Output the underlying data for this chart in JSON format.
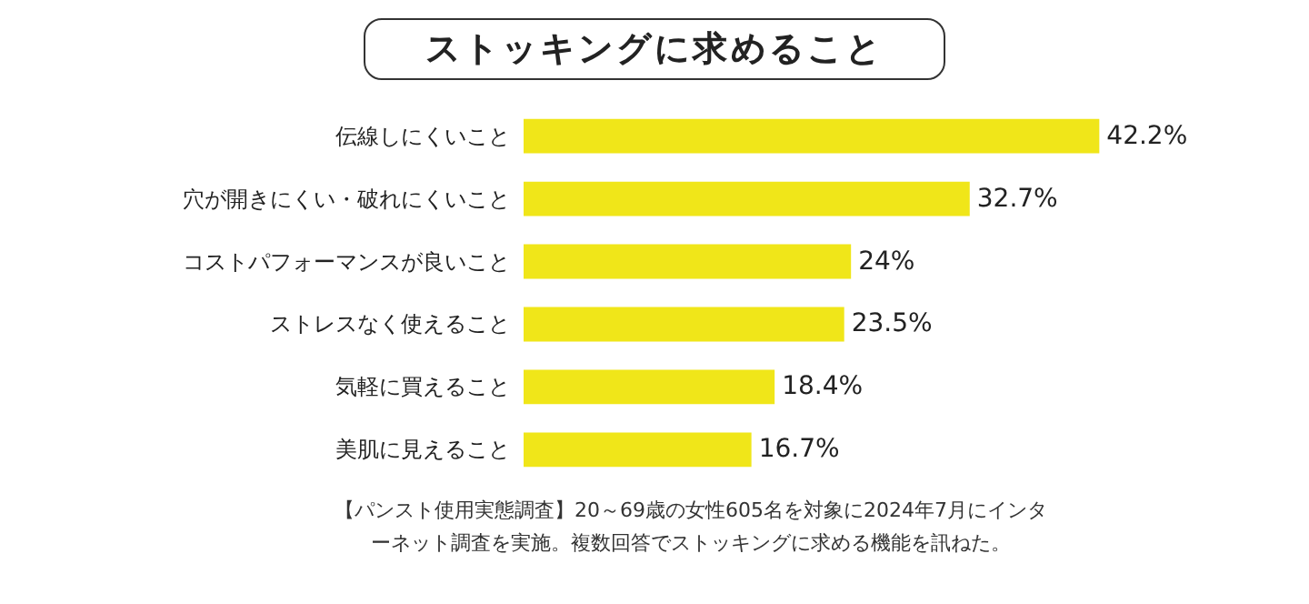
{
  "chart_data": {
    "type": "bar",
    "orientation": "horizontal",
    "title": "ストッキングに求めること",
    "categories": [
      "伝線しにくいこと",
      "穴が開きにくい・破れにくいこと",
      "コストパフォーマンスが良いこと",
      "ストレスなく使えること",
      "気軽に買えること",
      "美肌に見えること"
    ],
    "values": [
      42.2,
      32.7,
      24,
      23.5,
      18.4,
      16.7
    ],
    "value_labels": [
      "42.2%",
      "32.7%",
      "24%",
      "23.5%",
      "18.4%",
      "16.7%"
    ],
    "color": "#f0e619",
    "annotations": [
      "【パンスト使用実態調査】20～69歳の女性605名を対象に2024年7月にインターネット調査を実施。複数回答でストッキングに求める機能を訊ねた。"
    ]
  }
}
